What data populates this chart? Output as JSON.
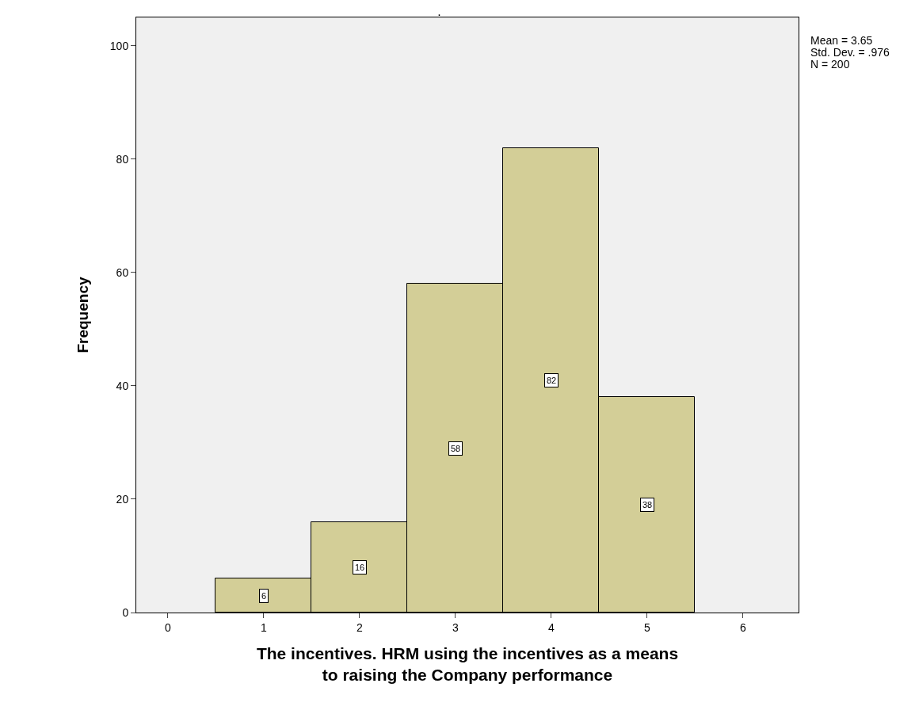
{
  "chart_data": {
    "type": "histogram",
    "title": ".",
    "xlabel": "The incentives. HRM using the incentives as a means\nto raising the Company performance",
    "ylabel": "Frequency",
    "bins": [
      0.5,
      1.5,
      2.5,
      3.5,
      4.5,
      5.5
    ],
    "values": [
      6,
      16,
      58,
      82,
      38
    ],
    "color": "#d3ce97",
    "data_labels": true,
    "xlim": [
      -0.33,
      6.58
    ],
    "xticks": [
      0,
      1,
      2,
      3,
      4,
      5,
      6
    ],
    "ylim": [
      0,
      105
    ],
    "yticks": [
      0,
      20,
      40,
      60,
      80,
      100
    ],
    "grid": false,
    "legend": false,
    "annotations": [
      "Mean = 3.65",
      "Std. Dev. = .976",
      "N = 200"
    ]
  }
}
